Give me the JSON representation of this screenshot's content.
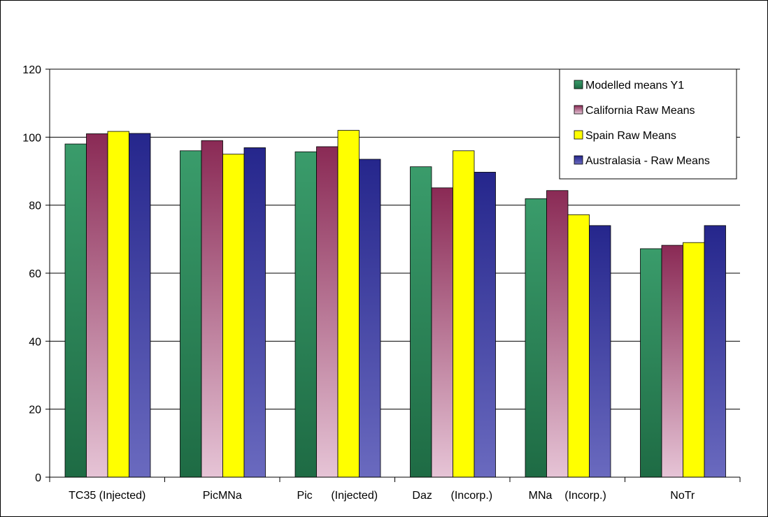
{
  "chart_data": {
    "type": "bar",
    "title": "",
    "xlabel": "",
    "ylabel": "",
    "ylim": [
      0,
      120
    ],
    "yticks": [
      0,
      20,
      40,
      60,
      80,
      100,
      120
    ],
    "grid": true,
    "legend_placement": "top-right",
    "categories": [
      "TC35 (Injected)",
      "PicMNa",
      "Pic      (Injected)",
      "Daz      (Incorp.)",
      "MNa    (Incorp.)",
      "NoTr"
    ],
    "series": [
      {
        "name": "Modelled means Y1",
        "values": [
          98,
          96,
          95.7,
          91.3,
          81.9,
          67.2
        ],
        "color_top": "#3a9c6b",
        "color_bottom": "#1e6b44"
      },
      {
        "name": "California Raw Means",
        "values": [
          101,
          99,
          97.2,
          85.1,
          84.3,
          68.2
        ],
        "color_top": "#8a2a55",
        "color_bottom": "#e6c4d6"
      },
      {
        "name": "Spain Raw Means",
        "values": [
          101.7,
          95,
          102,
          96,
          77.2,
          69
        ],
        "color_top": "#ffff00",
        "color_bottom": "#ffff00"
      },
      {
        "name": "Australasia - Raw Means",
        "values": [
          101.1,
          96.9,
          93.5,
          89.7,
          74,
          74
        ],
        "color_top": "#25268c",
        "color_bottom": "#6a6abf"
      }
    ]
  }
}
